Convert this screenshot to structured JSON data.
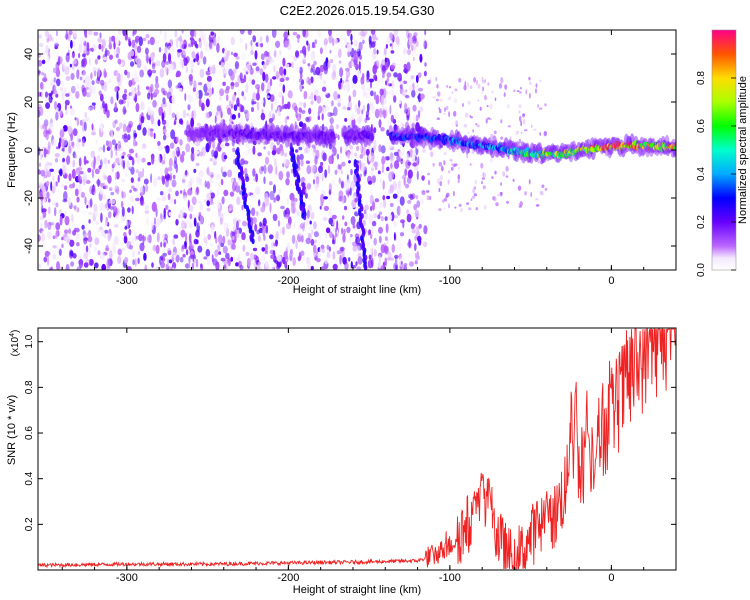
{
  "title": "C2E2.2026.015.19.54.G30",
  "colors": {
    "snr_line": "#ee2222",
    "axis": "#000000",
    "spec_purple": "#7a2ee6"
  },
  "colorbar": {
    "label": "Normalized spectral amplitude",
    "range": [
      0,
      1
    ],
    "ticks": [
      "0.0",
      "0.2",
      "0.4",
      "0.6",
      "0.8"
    ],
    "tick_values": [
      0,
      0.2,
      0.4,
      0.6,
      0.8
    ]
  },
  "chart_data": [
    {
      "type": "heatmap",
      "title": "C2E2.2026.015.19.54.G30",
      "xlabel": "Height of straight line (km)",
      "ylabel": "Frequency (Hz)",
      "xlim": [
        -355,
        40
      ],
      "ylim": [
        -50,
        50
      ],
      "x_ticks": [
        -300,
        -200,
        -100,
        0
      ],
      "x_tick_labels": [
        "-300",
        "-200",
        "-100",
        "0"
      ],
      "y_ticks": [
        -40,
        -20,
        0,
        20,
        40
      ],
      "y_tick_labels": [
        "-40",
        "-20",
        "0",
        "20",
        "40"
      ],
      "noise_region": {
        "x_from": -355,
        "x_to": -115
      },
      "signal_track": [
        {
          "x": -262,
          "y": 7,
          "amp": 0.15
        },
        {
          "x": -230,
          "y": 7,
          "amp": 0.25
        },
        {
          "x": -200,
          "y": 6,
          "amp": 0.25
        },
        {
          "x": -160,
          "y": 6,
          "amp": 0.2
        },
        {
          "x": -135,
          "y": 6,
          "amp": 0.35
        },
        {
          "x": -110,
          "y": 5,
          "amp": 0.4
        },
        {
          "x": -90,
          "y": 3,
          "amp": 0.45
        },
        {
          "x": -70,
          "y": 1,
          "amp": 0.5
        },
        {
          "x": -55,
          "y": -1,
          "amp": 0.6
        },
        {
          "x": -40,
          "y": -2,
          "amp": 0.75
        },
        {
          "x": -25,
          "y": -1,
          "amp": 0.85
        },
        {
          "x": -10,
          "y": 1,
          "amp": 0.95
        },
        {
          "x": 10,
          "y": 2,
          "amp": 1.0
        },
        {
          "x": 40,
          "y": 1,
          "amp": 0.95
        }
      ],
      "streaks": [
        {
          "x_start": -158,
          "x_end": -152,
          "y_start": -5,
          "y_end": -50
        },
        {
          "x_start": -232,
          "x_end": -222,
          "y_start": 0,
          "y_end": -38
        },
        {
          "x_start": -198,
          "x_end": -190,
          "y_start": 0,
          "y_end": -28
        }
      ]
    },
    {
      "type": "line",
      "xlabel": "Height of straight line (km)",
      "ylabel": "SNR (10 * v/v)",
      "y_scale_label": "(x10",
      "y_scale_exp": "4",
      "y_scale_close": ")",
      "xlim": [
        -355,
        40
      ],
      "ylim": [
        0,
        1.06
      ],
      "x_ticks": [
        -300,
        -200,
        -100,
        0
      ],
      "x_tick_labels": [
        "-300",
        "-200",
        "-100",
        "0"
      ],
      "y_ticks": [
        0.2,
        0.4,
        0.6,
        0.8,
        1.0
      ],
      "y_tick_labels": [
        "0.2",
        "0.4",
        "0.6",
        "0.8",
        "1.0"
      ],
      "series": [
        {
          "name": "SNR",
          "x": [
            -355,
            -300,
            -250,
            -200,
            -150,
            -120,
            -110,
            -100,
            -95,
            -90,
            -85,
            -80,
            -76,
            -72,
            -68,
            -64,
            -60,
            -55,
            -50,
            -45,
            -40,
            -35,
            -30,
            -25,
            -22,
            -20,
            -15,
            -10,
            -5,
            0,
            5,
            10,
            15,
            20,
            25,
            30,
            35,
            40
          ],
          "values": [
            0.02,
            0.025,
            0.025,
            0.03,
            0.035,
            0.04,
            0.06,
            0.1,
            0.14,
            0.17,
            0.2,
            0.28,
            0.24,
            0.16,
            0.1,
            0.05,
            0.05,
            0.07,
            0.13,
            0.18,
            0.17,
            0.22,
            0.32,
            0.4,
            0.45,
            0.42,
            0.48,
            0.52,
            0.58,
            0.66,
            0.72,
            0.8,
            0.86,
            0.92,
            0.97,
            1.0,
            1.02,
            1.03
          ]
        }
      ],
      "spikes": [
        {
          "x": -80,
          "value": 0.46
        },
        {
          "x": -85,
          "value": 0.39
        },
        {
          "x": -75,
          "value": 0.36
        },
        {
          "x": -40,
          "value": 0.38
        },
        {
          "x": -25,
          "value": 0.9
        },
        {
          "x": -22,
          "value": 0.97
        },
        {
          "x": -15,
          "value": 0.86
        }
      ]
    }
  ]
}
